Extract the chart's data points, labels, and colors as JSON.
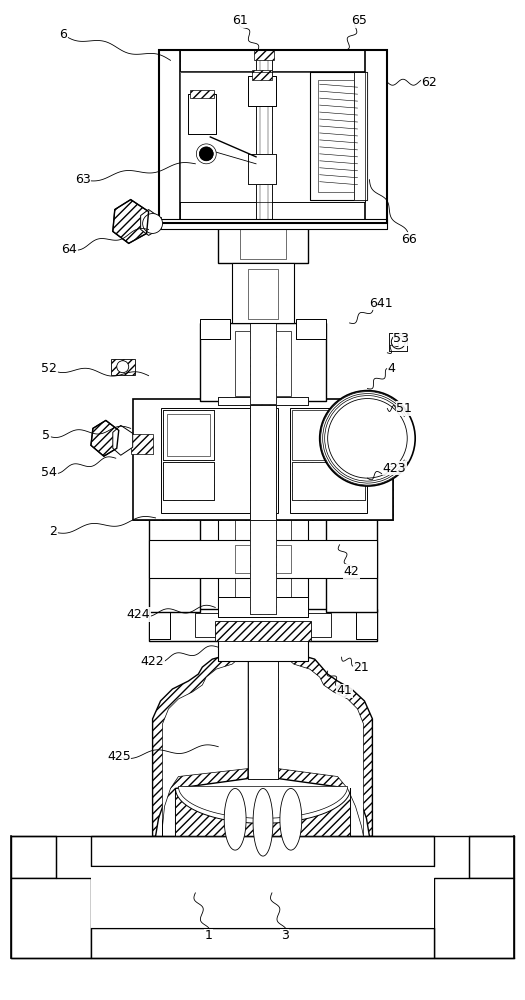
{
  "bg_color": "#ffffff",
  "lc": "#000000",
  "figsize": [
    5.25,
    10.0
  ],
  "dpi": 100,
  "annotations": [
    [
      "6",
      62,
      32,
      170,
      58,
      0.2
    ],
    [
      "61",
      240,
      18,
      258,
      48,
      0.0
    ],
    [
      "65",
      360,
      18,
      345,
      48,
      0.0
    ],
    [
      "62",
      430,
      80,
      388,
      80,
      0.0
    ],
    [
      "63",
      82,
      178,
      195,
      162,
      0.15
    ],
    [
      "64",
      68,
      248,
      148,
      228,
      0.2
    ],
    [
      "66",
      410,
      238,
      370,
      178,
      0.15
    ],
    [
      "641",
      382,
      302,
      350,
      322,
      0.15
    ],
    [
      "52",
      48,
      368,
      148,
      375,
      0.0
    ],
    [
      "5",
      45,
      435,
      130,
      428,
      0.0
    ],
    [
      "53",
      402,
      338,
      388,
      352,
      0.0
    ],
    [
      "4",
      392,
      368,
      368,
      388,
      0.15
    ],
    [
      "51",
      405,
      408,
      388,
      408,
      0.0
    ],
    [
      "54",
      48,
      472,
      115,
      458,
      0.15
    ],
    [
      "2",
      52,
      532,
      155,
      518,
      0.0
    ],
    [
      "42",
      352,
      572,
      340,
      545,
      0.15
    ],
    [
      "423",
      395,
      468,
      368,
      478,
      0.15
    ],
    [
      "21",
      362,
      668,
      342,
      658,
      0.15
    ],
    [
      "41",
      345,
      692,
      328,
      672,
      0.15
    ],
    [
      "422",
      152,
      662,
      218,
      648,
      0.15
    ],
    [
      "424",
      138,
      615,
      215,
      608,
      0.15
    ],
    [
      "425",
      118,
      758,
      218,
      748,
      0.15
    ],
    [
      "1",
      208,
      938,
      195,
      895,
      0.15
    ],
    [
      "3",
      285,
      938,
      272,
      895,
      0.15
    ]
  ]
}
